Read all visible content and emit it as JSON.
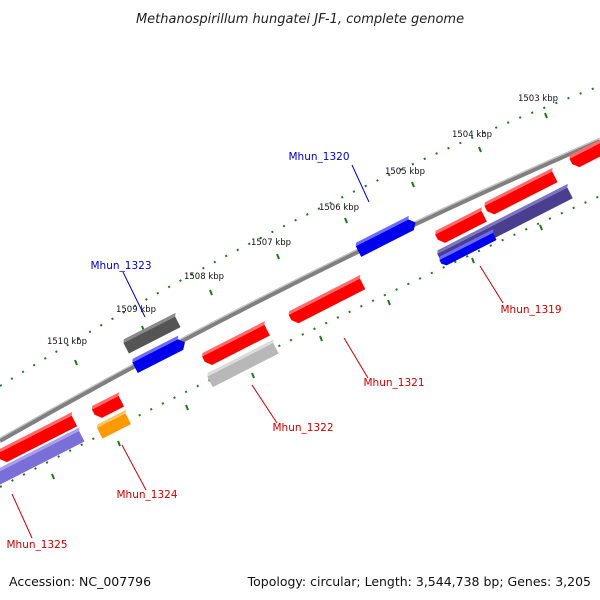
{
  "title": "Methanospirillum hungatei JF-1, complete genome",
  "footer": {
    "accession": "Accession: NC_007796",
    "topology": "Topology: circular; Length: 3,544,738 bp; Genes: 3,205"
  },
  "colors": {
    "backbone": "#808080",
    "tick": "#1a7a1a",
    "label_blue": "#0000cc",
    "label_red": "#cc0000",
    "red": "#ff0000",
    "blue": "#0000ee",
    "dark_gray": "#555555",
    "light_gray": "#b8b8b8",
    "orange": "#ff9900",
    "slate": "#4a3f8f",
    "lavender": "#7a6fd8"
  },
  "ticks": [
    {
      "label": "1503 kbp"
    },
    {
      "label": "1504 kbp"
    },
    {
      "label": "1505 kbp"
    },
    {
      "label": "1506 kbp"
    },
    {
      "label": "1507 kbp"
    },
    {
      "label": "1508 kbp"
    },
    {
      "label": "1509 kbp"
    },
    {
      "label": "1510 kbp"
    }
  ],
  "gene_labels": [
    {
      "text": "Mhun_1320",
      "color": "label_blue"
    },
    {
      "text": "Mhun_1323",
      "color": "label_blue"
    },
    {
      "text": "Mhun_1319",
      "color": "label_red"
    },
    {
      "text": "Mhun_1321",
      "color": "label_red"
    },
    {
      "text": "Mhun_1322",
      "color": "label_red"
    },
    {
      "text": "Mhun_1324",
      "color": "label_red"
    },
    {
      "text": "Mhun_1325",
      "color": "label_red"
    }
  ]
}
